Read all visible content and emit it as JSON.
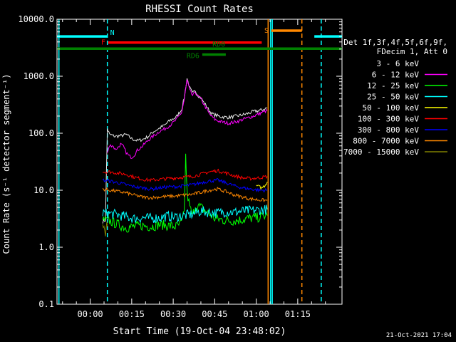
{
  "chart_data": {
    "type": "line",
    "title": "RHESSI Count Rates",
    "xlabel": "Start Time (19-Oct-04 23:48:02)",
    "ylabel": "Count Rate (s⁻¹ detector segment⁻¹)",
    "y_scale": "log",
    "ylim": [
      0.1,
      10000
    ],
    "xlim_minutes": [
      -12,
      91
    ],
    "x_tick_labels": [
      "00:00",
      "00:15",
      "00:30",
      "00:45",
      "01:00",
      "01:15"
    ],
    "y_tick_labels": [
      "0.1",
      "1.0",
      "10.0",
      "100.0",
      "1000.0",
      "10000.0"
    ],
    "legend_header": [
      "Det 1f,3f,4f,5f,6f,9f,",
      "FDecim 1, Att 0"
    ],
    "legend_position": "right",
    "series": [
      {
        "name": "3 - 6 keV",
        "color": "#000000",
        "x": [
          4.5,
          5.5,
          6.2,
          7,
          9,
          11,
          13,
          15,
          17,
          19,
          21,
          23,
          25,
          27,
          29,
          31,
          33,
          34,
          35,
          36,
          37,
          38,
          39,
          40,
          41,
          42,
          43,
          44,
          45,
          47,
          50,
          53,
          56,
          59,
          62,
          64
        ],
        "y": [
          2.8,
          3.0,
          120,
          95,
          88,
          90,
          95,
          80,
          74,
          78,
          88,
          108,
          122,
          140,
          170,
          190,
          260,
          420,
          920,
          620,
          500,
          560,
          460,
          420,
          350,
          300,
          250,
          220,
          210,
          195,
          190,
          200,
          215,
          240,
          255,
          280
        ]
      },
      {
        "name": "6 - 12 keV",
        "color": "#ff00ff",
        "x": [
          6.2,
          7,
          8,
          9,
          10,
          11,
          12,
          13,
          14,
          15,
          16,
          17,
          19,
          21,
          23,
          25,
          27,
          29,
          31,
          33,
          34,
          35,
          36,
          37,
          38,
          39,
          40,
          41,
          42,
          43,
          44,
          45,
          47,
          50,
          53,
          56,
          59,
          62,
          64
        ],
        "y": [
          45,
          60,
          62,
          52,
          56,
          64,
          58,
          46,
          40,
          38,
          42,
          50,
          60,
          76,
          90,
          108,
          120,
          140,
          170,
          230,
          390,
          860,
          560,
          460,
          520,
          440,
          400,
          330,
          270,
          220,
          195,
          175,
          160,
          150,
          160,
          180,
          200,
          230,
          250
        ]
      },
      {
        "name": "12 - 25 keV",
        "color": "#00ff00",
        "x": [
          4.5,
          7,
          10,
          13,
          16,
          19,
          22,
          25,
          28,
          31,
          33,
          34,
          34.5,
          35,
          36,
          37,
          38,
          40,
          42,
          45,
          48,
          51,
          54,
          57,
          60,
          62,
          64
        ],
        "y": [
          3.0,
          2.9,
          2.5,
          2.2,
          2.3,
          2.4,
          2.3,
          2.5,
          2.4,
          2.3,
          2.6,
          4.0,
          40,
          9,
          5,
          3.5,
          5.5,
          5,
          4.2,
          3.2,
          3.0,
          2.9,
          3.0,
          3.2,
          3.3,
          3.4,
          3.6
        ]
      },
      {
        "name": "25 - 50 keV",
        "color": "#00ffff",
        "x": [
          4.5,
          7,
          10,
          13,
          16,
          19,
          22,
          25,
          28,
          31,
          34,
          37,
          40,
          43,
          46,
          49,
          52,
          55,
          58,
          61,
          64
        ],
        "y": [
          4.0,
          3.9,
          3.7,
          3.4,
          3.2,
          3.3,
          3.2,
          3.3,
          3.5,
          3.4,
          3.6,
          3.8,
          4.3,
          4.1,
          4.0,
          4.2,
          4.1,
          4.3,
          4.4,
          4.5,
          4.6
        ]
      },
      {
        "name": "50 - 100 keV",
        "color": "#ffff00",
        "x": [
          60,
          61,
          62,
          63,
          64
        ],
        "y": [
          12,
          11.5,
          11,
          12,
          14
        ]
      },
      {
        "name": "100 - 300 keV",
        "color": "#ff0000",
        "x": [
          4.5,
          7,
          10,
          13,
          16,
          19,
          22,
          25,
          28,
          31,
          34,
          37,
          40,
          43,
          46,
          49,
          52,
          55,
          58,
          61,
          64
        ],
        "y": [
          21,
          21,
          20,
          19,
          17,
          15.5,
          15,
          15.5,
          16,
          16.5,
          17,
          17.5,
          19,
          21,
          22,
          20,
          18,
          16.5,
          16,
          16.5,
          17.5
        ]
      },
      {
        "name": "300 - 800 keV",
        "color": "#0000ff",
        "x": [
          4.5,
          7,
          10,
          13,
          16,
          19,
          22,
          25,
          28,
          31,
          34,
          37,
          40,
          43,
          46,
          49,
          52,
          55,
          58,
          61,
          64
        ],
        "y": [
          15,
          14.5,
          13.5,
          12.5,
          11.5,
          11,
          10.5,
          11,
          11.5,
          11.5,
          12,
          12.5,
          13.5,
          14.5,
          15,
          13.5,
          12,
          11,
          10.5,
          10,
          10
        ]
      },
      {
        "name": "800 - 7000 keV",
        "color": "#ff8800",
        "x": [
          4.5,
          7,
          10,
          13,
          16,
          19,
          22,
          25,
          28,
          31,
          34,
          37,
          40,
          43,
          46,
          49,
          52,
          55,
          58,
          61,
          64
        ],
        "y": [
          10.5,
          10,
          9.5,
          9,
          8.2,
          7.6,
          7.4,
          7.6,
          7.8,
          7.9,
          8.2,
          8.5,
          9.2,
          10,
          10.5,
          9.5,
          8.3,
          7.6,
          7.0,
          6.8,
          6.6
        ]
      },
      {
        "name": "7000 - 15000 keV",
        "color": "#808000",
        "x": [
          4.5,
          5,
          5.5,
          6,
          6.5
        ],
        "y": [
          2.5,
          2.2,
          1.6,
          2.6,
          2.3
        ]
      }
    ],
    "attenuator_bars": [
      {
        "label": "N",
        "color": "#00ffff",
        "segments": [
          [
            -12,
            6.2
          ],
          [
            81,
            91
          ]
        ],
        "y": 5000
      },
      {
        "label": "F",
        "color": "#ff0000",
        "segments": [
          [
            6.5,
            62
          ]
        ],
        "y": 3900
      },
      {
        "label": "S",
        "color": "#ff8800",
        "segments": [
          [
            65.5,
            76.5
          ]
        ],
        "y": 6300
      },
      {
        "label": "RD0",
        "color": "#008000",
        "segments": [
          [
            -12,
            91
          ]
        ],
        "y": 3050
      },
      {
        "label": "RD6",
        "color": "#008000",
        "segments": [
          [
            40.5,
            49
          ]
        ],
        "y": 2400
      }
    ],
    "vertical_lines": [
      {
        "x": -11.3,
        "color": "#00ffff",
        "style": "solid"
      },
      {
        "x": 6.2,
        "color": "#00ffff",
        "style": "dashed"
      },
      {
        "x": 64.3,
        "color": "#ff8800",
        "style": "solid"
      },
      {
        "x": 65.2,
        "color": "#00ffff",
        "style": "solid"
      },
      {
        "x": 65.8,
        "color": "#00ffff",
        "style": "solid"
      },
      {
        "x": 76.5,
        "color": "#ff8800",
        "style": "dashed"
      },
      {
        "x": 83.5,
        "color": "#00ffff",
        "style": "dashed"
      }
    ],
    "grid": false
  },
  "footer": {
    "date": "21-Oct-2021 17:04"
  }
}
